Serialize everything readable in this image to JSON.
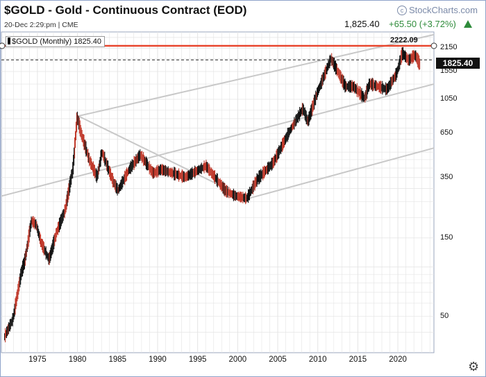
{
  "header": {
    "title": "$GOLD - Gold - Continuous Contract (EOD)",
    "brand": "StockCharts.com",
    "brand_icon": "c",
    "subtitle": "20-Dec 2:29:pm | CME",
    "last_price": "1,825.40",
    "change": "+65.50 (+3.72%)",
    "change_color": "#2e8b3a"
  },
  "legend": {
    "label": "$GOLD (Monthly) 1825.40"
  },
  "tags": {
    "high": "2222.09",
    "last": "1825.40"
  },
  "colors": {
    "up": "#111111",
    "down": "#c0392b",
    "resistance": "#e8452c",
    "channel": "#c8c8c8",
    "grid": "#e4e4e4"
  },
  "chart_data": {
    "type": "line",
    "scale": "log",
    "interval": "monthly",
    "x_ticks": [
      1975,
      1980,
      1985,
      1990,
      1995,
      2000,
      2005,
      2010,
      2015,
      2020
    ],
    "y_ticks": [
      2150,
      1550,
      1050,
      650,
      350,
      150,
      50
    ],
    "xlim": [
      1970.5,
      2024.5
    ],
    "ylim": [
      30,
      2700
    ],
    "series": [
      {
        "x": [
          1970.9,
          1972,
          1973,
          1973.5,
          1974.3,
          1974.9,
          1975.5,
          1976.5,
          1977.5,
          1978.5,
          1979.5,
          1980.0,
          1980.5,
          1981.5,
          1982.5,
          1983.1,
          1984.5,
          1985.1,
          1986.5,
          1987.9,
          1989.5,
          1990.5,
          1993.5,
          1996.1,
          1998.5,
          1999.7,
          2001.2,
          2002.5,
          2004.5,
          2006.4,
          2008.2,
          2008.8,
          2010,
          2011.7,
          2013.5,
          2014.5,
          2015.9,
          2016.5,
          2018.7,
          2019.9,
          2020.6,
          2021.4,
          2022.2,
          2022.8
        ],
        "y": [
          37,
          48,
          90,
          110,
          190,
          180,
          140,
          110,
          165,
          220,
          400,
          820,
          650,
          450,
          350,
          500,
          330,
          290,
          390,
          480,
          370,
          390,
          350,
          410,
          290,
          270,
          260,
          340,
          430,
          650,
          920,
          760,
          1150,
          1850,
          1250,
          1250,
          1060,
          1300,
          1200,
          1500,
          2000,
          1800,
          1950,
          1700
        ]
      }
    ],
    "annotations": [
      {
        "type": "horizontal_line",
        "value": 2222.09
      },
      {
        "type": "horizontal_line",
        "value": 1825.4,
        "style": "dashed"
      },
      {
        "type": "trendline",
        "from": [
          1970.5,
          270
        ],
        "to": [
          2024.5,
          1300
        ]
      },
      {
        "type": "trendline",
        "from": [
          1980.1,
          830
        ],
        "to": [
          2001.2,
          260
        ]
      },
      {
        "type": "trendline",
        "from": [
          1980.1,
          830
        ],
        "to": [
          2024.5,
          2600
        ]
      },
      {
        "type": "trendline",
        "from": [
          2001.2,
          260
        ],
        "to": [
          2024.5,
          530
        ]
      }
    ]
  }
}
